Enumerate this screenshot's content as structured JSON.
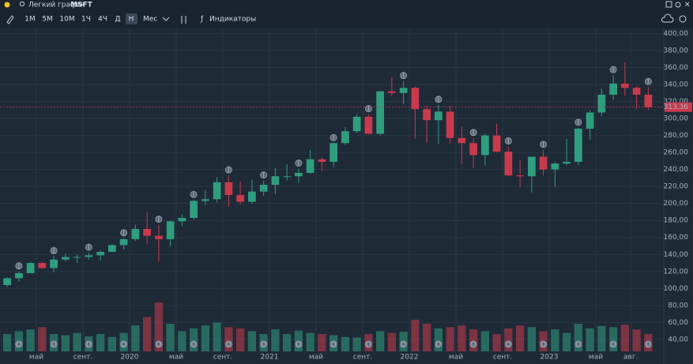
{
  "toolbar": {
    "title": "Легкий график",
    "symbol": "MSFT",
    "intervals": [
      "1М",
      "5М",
      "10М",
      "1Ч",
      "4Ч",
      "Д",
      "Н",
      "Мес"
    ],
    "active_interval": 6,
    "indicators": "Индикаторы"
  },
  "chart_data": {
    "type": "candlestick",
    "candles": [
      [
        104,
        113,
        102,
        112
      ],
      [
        112,
        120,
        108,
        118
      ],
      [
        118,
        131,
        118,
        130
      ],
      [
        130,
        131,
        123,
        124
      ],
      [
        124,
        138,
        119,
        134
      ],
      [
        134,
        141,
        132,
        137
      ],
      [
        137,
        140,
        130,
        137
      ],
      [
        137,
        142,
        134,
        139
      ],
      [
        139,
        145,
        133,
        143
      ],
      [
        143,
        152,
        143,
        151
      ],
      [
        151,
        159,
        146,
        158
      ],
      [
        158,
        175,
        156,
        170
      ],
      [
        170,
        190,
        152,
        162
      ],
      [
        162,
        175,
        132,
        158
      ],
      [
        158,
        180,
        150,
        179
      ],
      [
        179,
        187,
        173,
        183
      ],
      [
        183,
        204,
        181,
        203
      ],
      [
        203,
        216,
        198,
        205
      ],
      [
        205,
        231,
        201,
        225
      ],
      [
        225,
        233,
        196,
        210
      ],
      [
        210,
        226,
        199,
        202
      ],
      [
        202,
        228,
        200,
        214
      ],
      [
        214,
        227,
        209,
        222
      ],
      [
        222,
        242,
        211,
        232
      ],
      [
        232,
        246,
        227,
        232
      ],
      [
        232,
        241,
        224,
        236
      ],
      [
        236,
        263,
        235,
        252
      ],
      [
        252,
        254,
        238,
        249
      ],
      [
        249,
        271,
        243,
        271
      ],
      [
        271,
        290,
        269,
        285
      ],
      [
        285,
        305,
        283,
        302
      ],
      [
        302,
        305,
        281,
        282
      ],
      [
        282,
        332,
        280,
        332
      ],
      [
        332,
        349,
        326,
        330
      ],
      [
        330,
        344,
        317,
        336
      ],
      [
        336,
        338,
        276,
        311
      ],
      [
        311,
        315,
        271,
        298
      ],
      [
        298,
        316,
        270,
        308
      ],
      [
        308,
        315,
        270,
        277
      ],
      [
        277,
        290,
        246,
        271
      ],
      [
        271,
        277,
        242,
        257
      ],
      [
        257,
        282,
        245,
        280
      ],
      [
        280,
        294,
        260,
        261
      ],
      [
        261,
        267,
        232,
        233
      ],
      [
        233,
        251,
        219,
        232
      ],
      [
        232,
        255,
        213,
        255
      ],
      [
        255,
        263,
        233,
        240
      ],
      [
        240,
        249,
        219,
        247
      ],
      [
        247,
        276,
        245,
        249
      ],
      [
        249,
        289,
        245,
        288
      ],
      [
        288,
        310,
        275,
        307
      ],
      [
        307,
        335,
        303,
        328
      ],
      [
        328,
        351,
        322,
        341
      ],
      [
        341,
        366,
        327,
        336
      ],
      [
        336,
        338,
        311,
        328
      ],
      [
        328,
        337,
        310,
        313.36
      ]
    ],
    "volumes": [
      30,
      35,
      38,
      42,
      30,
      28,
      32,
      26,
      30,
      25,
      32,
      45,
      60,
      85,
      48,
      35,
      40,
      45,
      50,
      42,
      40,
      35,
      30,
      38,
      30,
      36,
      32,
      30,
      28,
      25,
      24,
      30,
      35,
      32,
      34,
      55,
      48,
      40,
      42,
      45,
      38,
      35,
      30,
      40,
      45,
      42,
      35,
      38,
      32,
      48,
      40,
      44,
      42,
      46,
      38,
      30
    ],
    "up_color": "#2f9e7f",
    "down_color": "#c93a4c",
    "ylim": [
      26,
      405
    ],
    "yticks": [
      {
        "value": 400,
        "label": "400,00"
      },
      {
        "value": 380,
        "label": "380,00"
      },
      {
        "value": 360,
        "label": "360,00"
      },
      {
        "value": 340,
        "label": "340,00"
      },
      {
        "value": 320,
        "label": "320,00"
      },
      {
        "value": 300,
        "label": "300,00"
      },
      {
        "value": 280,
        "label": "280,00"
      },
      {
        "value": 260,
        "label": "260,00"
      },
      {
        "value": 240,
        "label": "240,00"
      },
      {
        "value": 220,
        "label": "220,00"
      },
      {
        "value": 200,
        "label": "200,00"
      },
      {
        "value": 180,
        "label": "180,00"
      },
      {
        "value": 160,
        "label": "160,00"
      },
      {
        "value": 140,
        "label": "140,00"
      },
      {
        "value": 120,
        "label": "120,00"
      },
      {
        "value": 100,
        "label": "100,00"
      },
      {
        "value": 80,
        "label": "80,00"
      },
      {
        "value": 60,
        "label": "60,00"
      },
      {
        "value": 40,
        "label": "40,00"
      }
    ],
    "xticks": [
      {
        "value": 3,
        "label": "май"
      },
      {
        "value": 7,
        "label": "сент."
      },
      {
        "value": 11,
        "label": "2020"
      },
      {
        "value": 15,
        "label": "май"
      },
      {
        "value": 19,
        "label": "сент."
      },
      {
        "value": 23,
        "label": "2021"
      },
      {
        "value": 27,
        "label": "май"
      },
      {
        "value": 31,
        "label": "сент."
      },
      {
        "value": 35,
        "label": "2022"
      },
      {
        "value": 39,
        "label": "май"
      },
      {
        "value": 43,
        "label": "сент."
      },
      {
        "value": 47,
        "label": "2023"
      },
      {
        "value": 51,
        "label": "май"
      },
      {
        "value": 54,
        "label": "авг."
      }
    ],
    "last": {
      "value": 313.36,
      "label": "313,36"
    },
    "dividend_marker": "D",
    "earnings_marker": "I",
    "grid": true
  }
}
